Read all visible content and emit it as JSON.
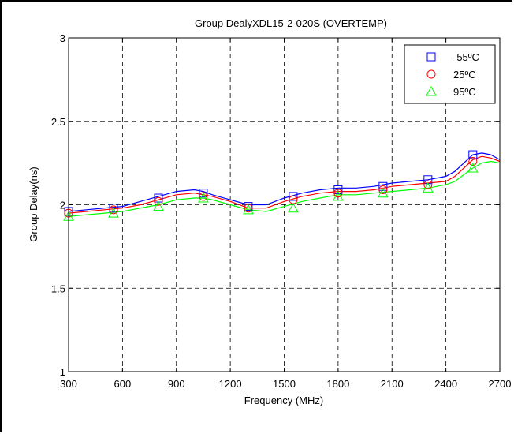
{
  "chart_data": {
    "type": "line",
    "title": "Group DealyXDL15-2-020S (OVERTEMP)",
    "xlabel": "Frequency (MHz)",
    "ylabel": "Group Delay(ns)",
    "xlim": [
      300,
      2700
    ],
    "ylim": [
      1,
      3
    ],
    "xticks": [
      300,
      600,
      900,
      1200,
      1500,
      1800,
      2100,
      2400,
      2700
    ],
    "yticks": [
      1,
      1.5,
      2,
      2.5,
      3
    ],
    "ytick_labels": [
      "1",
      "1.5",
      "2",
      "2.5",
      "3"
    ],
    "grid": true,
    "legend_position": "top-right",
    "series": [
      {
        "name": "-55ºC",
        "color": "#0000ff",
        "marker": "square",
        "x": [
          300,
          400,
          500,
          600,
          700,
          800,
          900,
          1000,
          1050,
          1100,
          1200,
          1300,
          1400,
          1500,
          1600,
          1700,
          1800,
          1900,
          2000,
          2100,
          2200,
          2300,
          2400,
          2450,
          2500,
          2550,
          2600,
          2650,
          2700
        ],
        "y": [
          1.96,
          1.97,
          1.98,
          1.99,
          2.02,
          2.05,
          2.08,
          2.09,
          2.08,
          2.06,
          2.03,
          2.0,
          2.0,
          2.04,
          2.07,
          2.09,
          2.1,
          2.1,
          2.11,
          2.13,
          2.14,
          2.15,
          2.17,
          2.2,
          2.25,
          2.3,
          2.31,
          2.3,
          2.27
        ],
        "markers_x": [
          300,
          550,
          800,
          1050,
          1300,
          1550,
          1800,
          2050,
          2300,
          2550
        ],
        "markers_y": [
          1.96,
          1.98,
          2.04,
          2.07,
          1.99,
          2.05,
          2.09,
          2.11,
          2.15,
          2.3
        ]
      },
      {
        "name": "25ºC",
        "color": "#ff0000",
        "marker": "circle",
        "x": [
          300,
          400,
          500,
          600,
          700,
          800,
          900,
          1000,
          1050,
          1100,
          1200,
          1300,
          1400,
          1500,
          1600,
          1700,
          1800,
          1900,
          2000,
          2100,
          2200,
          2300,
          2400,
          2450,
          2500,
          2550,
          2600,
          2650,
          2700
        ],
        "y": [
          1.95,
          1.96,
          1.97,
          1.98,
          2.0,
          2.03,
          2.06,
          2.07,
          2.06,
          2.05,
          2.02,
          1.98,
          1.98,
          2.02,
          2.05,
          2.07,
          2.08,
          2.08,
          2.09,
          2.11,
          2.12,
          2.13,
          2.14,
          2.17,
          2.22,
          2.27,
          2.29,
          2.28,
          2.26
        ],
        "markers_x": [
          300,
          550,
          800,
          1050,
          1300,
          1550,
          1800,
          2050,
          2300,
          2550
        ],
        "markers_y": [
          1.95,
          1.97,
          2.02,
          2.05,
          1.98,
          2.03,
          2.07,
          2.09,
          2.12,
          2.26
        ]
      },
      {
        "name": "95ºC",
        "color": "#00ff00",
        "marker": "triangle",
        "x": [
          300,
          400,
          500,
          600,
          700,
          800,
          900,
          1000,
          1050,
          1100,
          1200,
          1300,
          1400,
          1500,
          1600,
          1700,
          1800,
          1900,
          2000,
          2100,
          2200,
          2300,
          2400,
          2450,
          2500,
          2550,
          2600,
          2650,
          2700
        ],
        "y": [
          1.93,
          1.94,
          1.95,
          1.96,
          1.98,
          2.0,
          2.03,
          2.04,
          2.04,
          2.03,
          2.0,
          1.97,
          1.96,
          1.99,
          2.02,
          2.04,
          2.06,
          2.06,
          2.07,
          2.08,
          2.09,
          2.1,
          2.12,
          2.14,
          2.18,
          2.22,
          2.25,
          2.26,
          2.25
        ],
        "markers_x": [
          300,
          550,
          800,
          1050,
          1300,
          1550,
          1800,
          2050,
          2300,
          2550
        ],
        "markers_y": [
          1.93,
          1.95,
          1.99,
          2.04,
          1.97,
          1.98,
          2.05,
          2.07,
          2.1,
          2.22
        ]
      }
    ]
  }
}
